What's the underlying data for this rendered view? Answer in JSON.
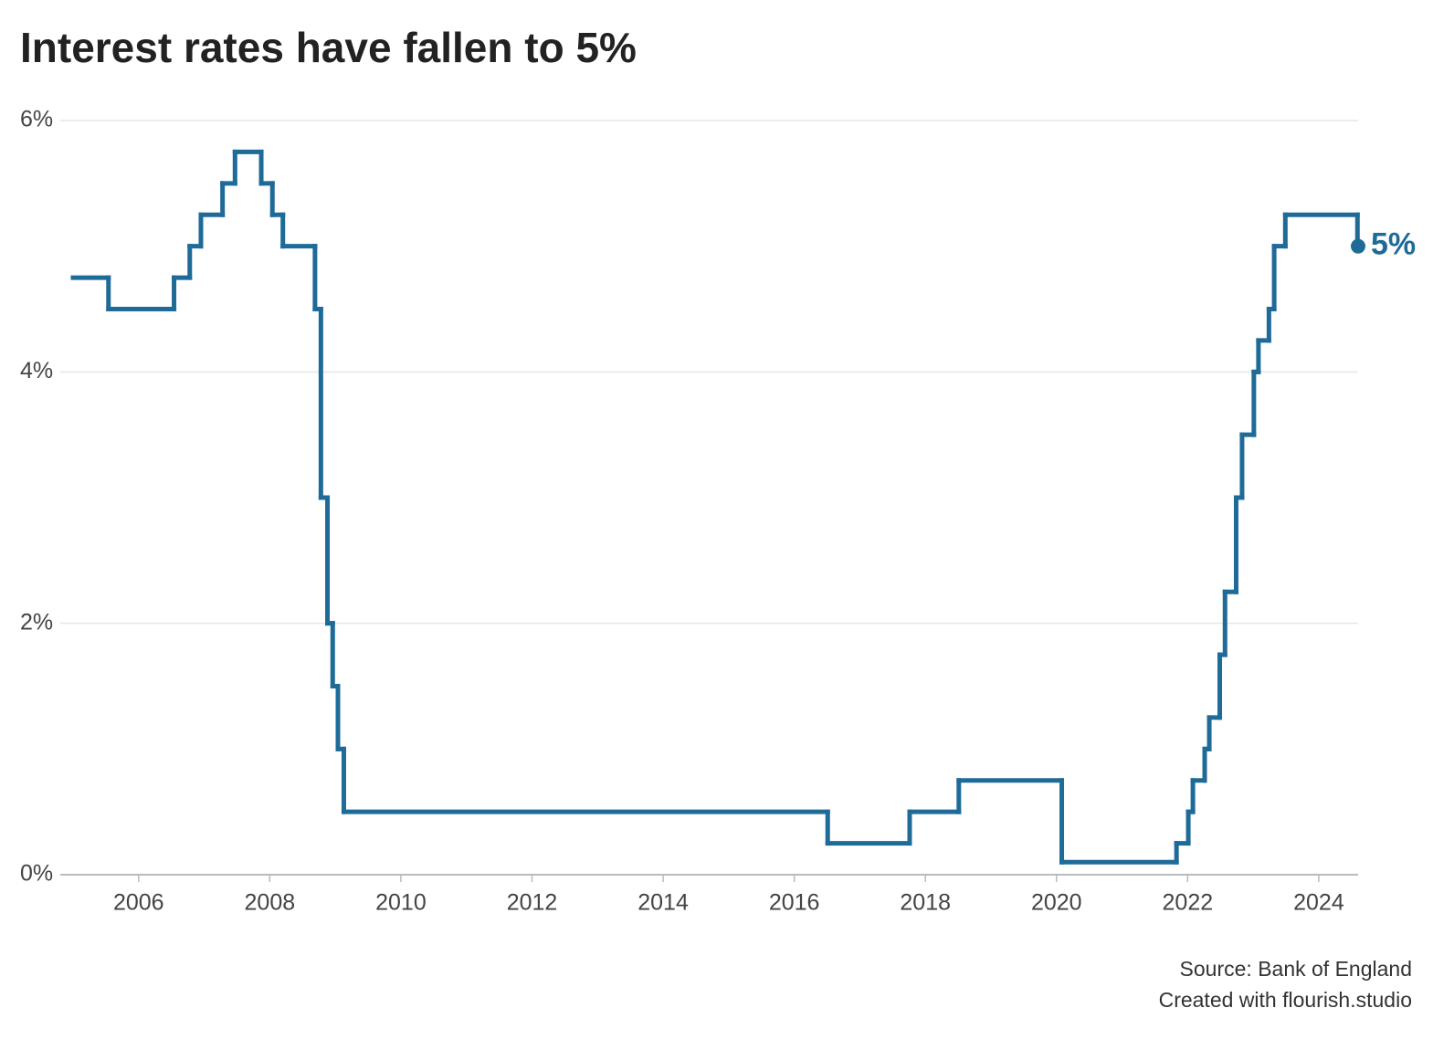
{
  "chart_data": {
    "type": "step",
    "title": "Interest rates have fallen to 5%",
    "source": "Source: Bank of England",
    "credit": "Created with flourish.studio",
    "end_label": "5%",
    "color": "#1f6b98",
    "grid": true,
    "x": [
      2005.0,
      2005.54,
      2006.54,
      2006.78,
      2006.95,
      2007.28,
      2007.47,
      2007.87,
      2008.04,
      2008.2,
      2008.69,
      2008.78,
      2008.88,
      2008.96,
      2009.04,
      2009.13,
      2016.51,
      2017.76,
      2018.51,
      2020.08,
      2021.83,
      2022.01,
      2022.08,
      2022.26,
      2022.33,
      2022.49,
      2022.57,
      2022.74,
      2022.83,
      2023.01,
      2023.08,
      2023.24,
      2023.32,
      2023.49,
      2024.59
    ],
    "values": [
      4.75,
      4.5,
      4.75,
      5.0,
      5.25,
      5.5,
      5.75,
      5.5,
      5.25,
      5.0,
      4.5,
      3.0,
      2.0,
      1.5,
      1.0,
      0.5,
      0.25,
      0.5,
      0.75,
      0.1,
      0.25,
      0.5,
      0.75,
      1.0,
      1.25,
      1.75,
      2.25,
      3.0,
      3.5,
      4.0,
      4.25,
      4.5,
      5.0,
      5.25,
      5.0
    ],
    "xlim": [
      2005.0,
      2024.6
    ],
    "xticks": [
      2006,
      2008,
      2010,
      2012,
      2014,
      2016,
      2018,
      2020,
      2022,
      2024
    ],
    "ylim": [
      0,
      6
    ],
    "yticks": [
      {
        "value": 0,
        "label": "0%"
      },
      {
        "value": 2,
        "label": "2%"
      },
      {
        "value": 4,
        "label": "4%"
      },
      {
        "value": 6,
        "label": "6%"
      }
    ]
  }
}
